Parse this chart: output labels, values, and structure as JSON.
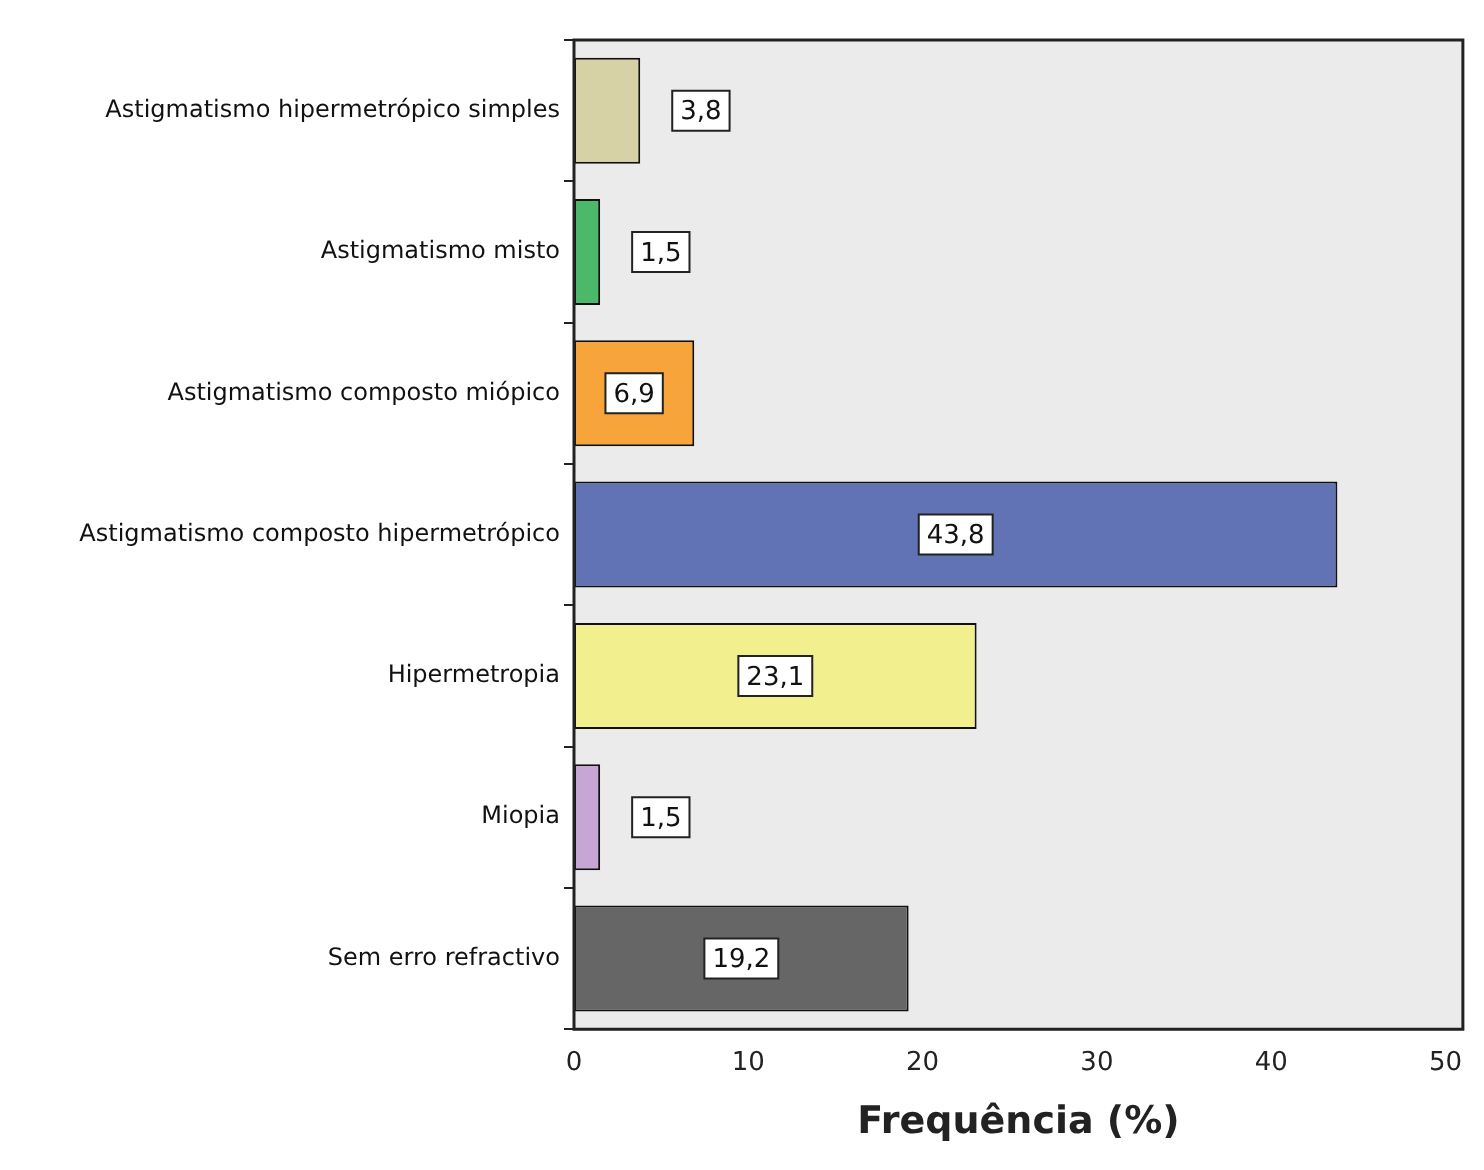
{
  "chart_data": {
    "type": "bar",
    "orientation": "horizontal",
    "xlabel": "Frequência (%)",
    "categories": [
      "Astigmatismo hipermetrópico simples",
      "Astigmatismo misto",
      "Astigmatismo composto miópico",
      "Astigmatismo composto hipermetrópico",
      "Hipermetropia",
      "Miopia",
      "Sem erro refractivo"
    ],
    "values": [
      3.8,
      1.5,
      6.9,
      43.8,
      23.1,
      1.5,
      19.2
    ],
    "colors": [
      "#d6d2a6",
      "#4cb96a",
      "#f7a43a",
      "#6273b5",
      "#f2ef8e",
      "#c7a6d6",
      "#666666"
    ],
    "value_labels": [
      "3,8",
      "1,5",
      "6,9",
      "43,8",
      "23,1",
      "1,5",
      "19,2"
    ],
    "xlim": [
      0,
      51
    ],
    "xticks": [
      0,
      10,
      20,
      30,
      40,
      50
    ],
    "grid": false,
    "legend": false
  }
}
